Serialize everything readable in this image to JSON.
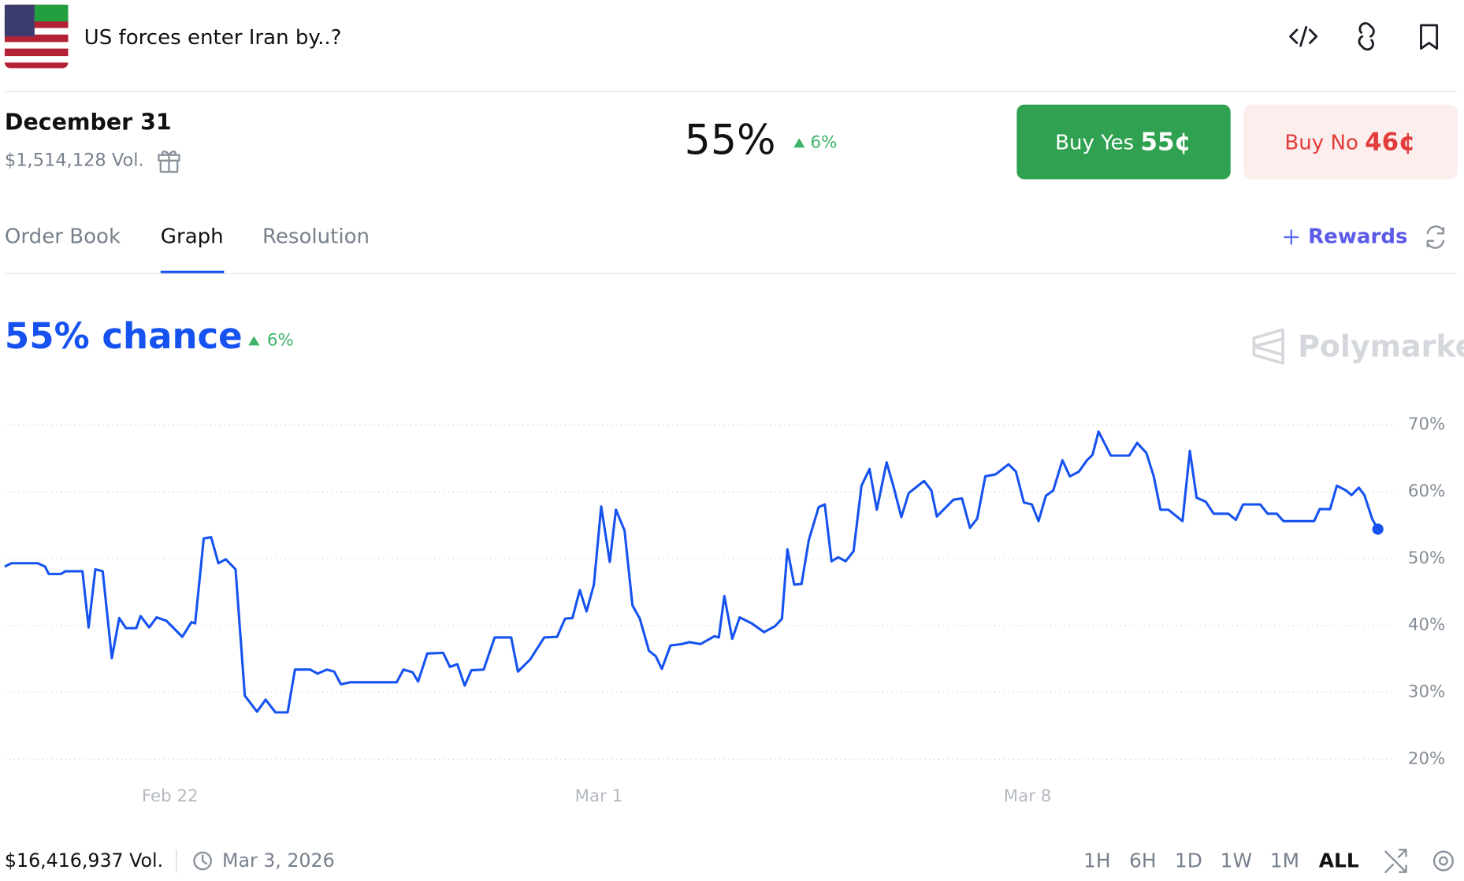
{
  "header": {
    "title": "US forces enter Iran by..?"
  },
  "market": {
    "date": "December 31",
    "volume": "$1,514,128 Vol.",
    "probability": "55%",
    "change": "6%",
    "buy_yes_label": "Buy Yes",
    "buy_yes_price": "55¢",
    "buy_no_label": "Buy No",
    "buy_no_price": "46¢"
  },
  "tabs": [
    "Order Book",
    "Graph",
    "Resolution"
  ],
  "rewards": "Rewards",
  "chart_data": {
    "type": "line",
    "title": "55% chance",
    "change": "6%",
    "watermark": "Polymarket",
    "color": "#1652f0",
    "x": [
      19.3,
      19.41,
      19.84,
      19.96,
      20.02,
      20.22,
      20.29,
      20.57,
      20.67,
      20.78,
      20.9,
      21.05,
      21.17,
      21.28,
      21.45,
      21.52,
      21.66,
      21.78,
      21.94,
      22.2,
      22.35,
      22.41,
      22.55,
      22.67,
      22.79,
      22.91,
      23.07,
      23.22,
      23.42,
      23.56,
      23.72,
      23.92,
      24.04,
      24.29,
      24.41,
      24.56,
      24.68,
      24.79,
      24.94,
      25.7,
      25.81,
      25.96,
      26.05,
      26.2,
      26.46,
      26.57,
      26.69,
      26.81,
      26.92,
      27.12,
      27.3,
      27.57,
      27.68,
      27.88,
      28.11,
      28.32,
      28.45,
      28.57,
      28.69,
      28.8,
      28.92,
      29.04,
      29.18,
      29.28,
      29.42,
      29.55,
      29.67,
      29.82,
      29.93,
      30.03,
      30.17,
      30.35,
      30.48,
      30.66,
      30.89,
      30.96,
      31.05,
      31.18,
      31.3,
      31.5,
      31.7,
      31.88,
      31.99,
      32.08,
      32.19,
      32.31,
      32.43,
      32.59,
      32.69,
      32.8,
      32.91,
      33.03,
      33.16,
      33.29,
      33.42,
      33.54,
      33.7,
      33.82,
      33.94,
      34.06,
      34.31,
      34.43,
      34.52,
      34.79,
      34.93,
      35.06,
      35.18,
      35.31,
      35.48,
      35.69,
      35.81,
      35.94,
      36.07,
      36.18,
      36.3,
      36.42,
      36.57,
      36.69,
      36.84,
      36.97,
      37.06,
      37.16,
      37.36,
      37.66,
      37.79,
      37.94,
      38.06,
      38.17,
      38.3,
      38.53,
      38.65,
      38.76,
      38.91,
      39.04,
      39.28,
      39.4,
      39.52,
      39.8,
      39.92,
      40.07,
      40.18,
      40.68,
      40.77,
      40.94,
      41.05,
      41.2,
      41.29,
      41.41,
      41.5,
      41.63,
      41.72
    ],
    "values": [
      48.8,
      49.3,
      49.3,
      48.8,
      47.7,
      47.7,
      48.1,
      48.1,
      39.7,
      48.4,
      48.1,
      35.1,
      41.1,
      39.6,
      39.6,
      41.4,
      39.7,
      41.2,
      40.7,
      38.3,
      40.5,
      40.3,
      53.0,
      53.2,
      49.3,
      49.9,
      48.4,
      29.5,
      27.1,
      28.9,
      27.0,
      27.0,
      33.4,
      33.4,
      32.8,
      33.4,
      33.1,
      31.2,
      31.5,
      31.5,
      33.4,
      33.0,
      31.6,
      35.8,
      35.9,
      33.8,
      34.2,
      31.0,
      33.3,
      33.4,
      38.2,
      38.2,
      33.1,
      34.9,
      38.2,
      38.3,
      41.0,
      41.1,
      45.3,
      42.1,
      46.1,
      57.8,
      49.5,
      57.3,
      54.2,
      43.0,
      41.0,
      36.2,
      35.4,
      33.5,
      37.0,
      37.2,
      37.5,
      37.2,
      38.4,
      38.2,
      44.4,
      38.0,
      41.2,
      40.3,
      39.0,
      39.9,
      41.0,
      51.4,
      46.1,
      46.2,
      52.8,
      57.7,
      58.1,
      49.6,
      50.2,
      49.6,
      51.1,
      60.9,
      63.4,
      57.3,
      64.4,
      60.5,
      56.2,
      59.8,
      61.6,
      60.2,
      56.3,
      58.8,
      59.0,
      54.6,
      56.0,
      62.3,
      62.6,
      64.1,
      63.0,
      58.4,
      58.1,
      55.6,
      59.4,
      60.2,
      64.7,
      62.3,
      63.0,
      64.7,
      65.5,
      69.0,
      65.4,
      65.4,
      67.3,
      65.8,
      62.3,
      57.3,
      57.3,
      55.6,
      66.1,
      59.1,
      58.5,
      56.7,
      56.7,
      55.8,
      58.1,
      58.1,
      56.7,
      56.7,
      55.6,
      55.6,
      57.4,
      57.4,
      60.9,
      60.2,
      59.5,
      60.6,
      59.5,
      55.9,
      54.4
    ],
    "xlim": [
      19.3,
      41.8
    ],
    "xticks": [
      {
        "value": 22,
        "label": "Feb 22"
      },
      {
        "value": 29,
        "label": "Mar 1"
      },
      {
        "value": 36,
        "label": "Mar 8"
      }
    ],
    "ylim": [
      20,
      70
    ],
    "yticks": [
      {
        "value": 20,
        "label": "20%"
      },
      {
        "value": 30,
        "label": "30%"
      },
      {
        "value": 40,
        "label": "40%"
      },
      {
        "value": 50,
        "label": "50%"
      },
      {
        "value": 60,
        "label": "60%"
      },
      {
        "value": 70,
        "label": "70%"
      }
    ],
    "grid": true
  },
  "footer": {
    "volume": "$16,416,937 Vol.",
    "date": "Mar 3, 2026",
    "ranges": [
      "1H",
      "6H",
      "1D",
      "1W",
      "1M",
      "ALL"
    ]
  }
}
